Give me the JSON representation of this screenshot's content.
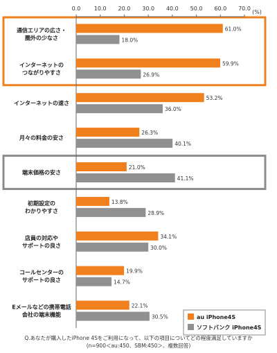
{
  "chart_data": {
    "type": "bar",
    "orientation": "horizontal",
    "unit": "(%)",
    "x_ticks": [
      "0.0",
      "10.0",
      "20.0",
      "30.0",
      "40.0",
      "50.0",
      "60.0",
      "70.0"
    ],
    "xlim": [
      0,
      70
    ],
    "grid": false,
    "legend_position": "bottom-right",
    "highlighted_groups": [
      [
        0,
        1
      ],
      [
        4
      ]
    ],
    "highlight_colors": [
      "#f07f1e",
      "#8c8c8c"
    ],
    "categories": [
      [
        "通信エリアの広さ・",
        "圏外の少なさ"
      ],
      [
        "インターネットの",
        "つながりやすさ"
      ],
      [
        "インターネットの速さ"
      ],
      [
        "月々の料金の安さ"
      ],
      [
        "端末価格の安さ"
      ],
      [
        "初期設定の",
        "わかりやすさ"
      ],
      [
        "店員の対応や",
        "サポートの良さ"
      ],
      [
        "コールセンターの",
        "サポートの良さ"
      ],
      [
        "Eメールなどの携帯電話",
        "会社の端末機能"
      ]
    ],
    "series": [
      {
        "name": "au iPhone4S",
        "color": "#f07f1e",
        "values": [
          61.0,
          59.9,
          53.2,
          26.3,
          21.0,
          13.8,
          34.1,
          19.9,
          22.1
        ],
        "labels": [
          "61.0%",
          "59.9%",
          "53.2%",
          "26.3%",
          "21.0%",
          "13.8%",
          "34.1%",
          "19.9%",
          "22.1%"
        ]
      },
      {
        "name": "ソフトバンク iPhone4S",
        "color": "#909090",
        "values": [
          18.0,
          26.9,
          36.0,
          40.1,
          41.1,
          28.9,
          30.0,
          14.7,
          30.5
        ],
        "labels": [
          "18.0%",
          "26.9%",
          "36.0%",
          "40.1%",
          "41.1%",
          "28.9%",
          "30.0%",
          "14.7%",
          "30.5%"
        ]
      }
    ]
  },
  "footnote": {
    "line1": "Q.あなたが購入したiPhone 4Sをご利用になって、以下の項目についてどの程度満足していますか",
    "line2": "(n=900＜au:450、SBM:450＞、複数回答)"
  }
}
